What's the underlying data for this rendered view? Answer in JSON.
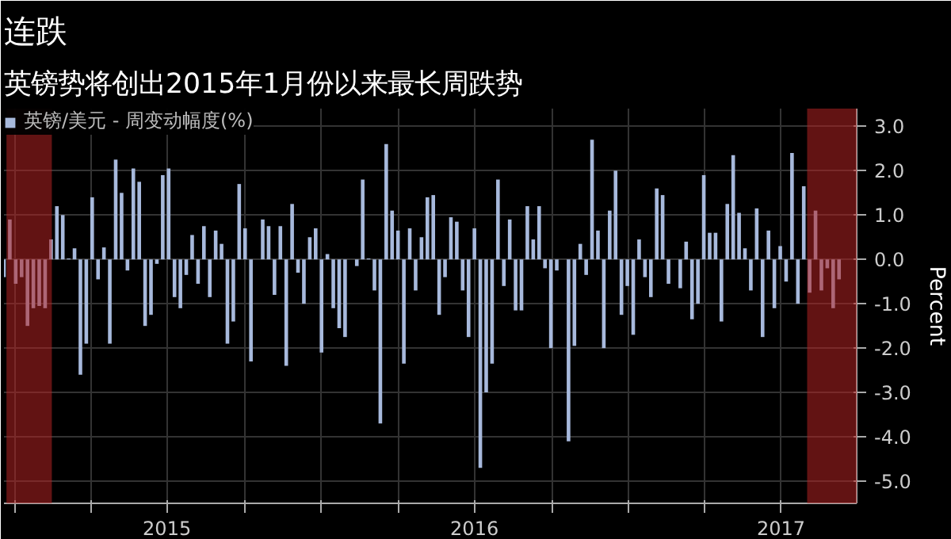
{
  "chart_data": {
    "type": "bar",
    "title": "连跌",
    "subtitle": "英镑势将创出2015年1月份以来最长周跌势",
    "ylabel": "Percent",
    "x": [
      "2014-12-19",
      "2014-12-26",
      "2015-01-02",
      "2015-01-09",
      "2015-01-16",
      "2015-01-23",
      "2015-01-30",
      "2015-02-06",
      "2015-02-13",
      "2015-02-20",
      "2015-02-27",
      "2015-03-06",
      "2015-03-13",
      "2015-03-20",
      "2015-03-27",
      "2015-04-03",
      "2015-04-10",
      "2015-04-17",
      "2015-04-24",
      "2015-05-01",
      "2015-05-08",
      "2015-05-15",
      "2015-05-22",
      "2015-05-29",
      "2015-06-05",
      "2015-06-12",
      "2015-06-19",
      "2015-06-26",
      "2015-07-03",
      "2015-07-10",
      "2015-07-17",
      "2015-07-24",
      "2015-07-31",
      "2015-08-07",
      "2015-08-14",
      "2015-08-21",
      "2015-08-28",
      "2015-09-04",
      "2015-09-11",
      "2015-09-18",
      "2015-09-25",
      "2015-10-02",
      "2015-10-09",
      "2015-10-16",
      "2015-10-23",
      "2015-10-30",
      "2015-11-06",
      "2015-11-13",
      "2015-11-20",
      "2015-11-27",
      "2015-12-04",
      "2015-12-11",
      "2015-12-18",
      "2015-12-25",
      "2016-01-01",
      "2016-01-08",
      "2016-01-15",
      "2016-01-22",
      "2016-01-29",
      "2016-02-05",
      "2016-02-12",
      "2016-02-19",
      "2016-02-26",
      "2016-03-04",
      "2016-03-11",
      "2016-03-18",
      "2016-03-25",
      "2016-04-01",
      "2016-04-08",
      "2016-04-15",
      "2016-04-22",
      "2016-04-29",
      "2016-05-06",
      "2016-05-13",
      "2016-05-20",
      "2016-05-27",
      "2016-06-03",
      "2016-06-10",
      "2016-06-17",
      "2016-06-24",
      "2016-07-01",
      "2016-07-08",
      "2016-07-15",
      "2016-07-22",
      "2016-07-29",
      "2016-08-05",
      "2016-08-12",
      "2016-08-19",
      "2016-08-26",
      "2016-09-02",
      "2016-09-09",
      "2016-09-16",
      "2016-09-23",
      "2016-09-30",
      "2016-10-07",
      "2016-10-14",
      "2016-10-21",
      "2016-10-28",
      "2016-11-04",
      "2016-11-11",
      "2016-11-18",
      "2016-11-25",
      "2016-12-02",
      "2016-12-09",
      "2016-12-16",
      "2016-12-23",
      "2016-12-30",
      "2017-01-06",
      "2017-01-13",
      "2017-01-20",
      "2017-01-27",
      "2017-02-03",
      "2017-02-10",
      "2017-02-17",
      "2017-02-24",
      "2017-03-03",
      "2017-03-10",
      "2017-03-17",
      "2017-03-24",
      "2017-03-31",
      "2017-04-07",
      "2017-04-14",
      "2017-04-21",
      "2017-04-28",
      "2017-05-05",
      "2017-05-12",
      "2017-05-19",
      "2017-05-26",
      "2017-06-02",
      "2017-06-09",
      "2017-06-16",
      "2017-06-23",
      "2017-06-30",
      "2017-07-07",
      "2017-07-14",
      "2017-07-21",
      "2017-07-28",
      "2017-08-04",
      "2017-08-11",
      "2017-08-18",
      "2017-08-25",
      "2017-09-01",
      "2017-09-08"
    ],
    "series": [
      {
        "name": "英镑/美元 - 周变动幅度(%)",
        "color": "#a7b9dc",
        "values": [
          -0.4,
          0.9,
          -0.55,
          -0.4,
          -1.5,
          -1.1,
          -1.05,
          -1.1,
          0.45,
          1.2,
          1.0,
          0.02,
          0.25,
          -2.6,
          -1.9,
          1.4,
          -0.45,
          0.27,
          -1.9,
          2.25,
          1.5,
          -0.25,
          2.05,
          1.75,
          -1.5,
          -1.25,
          -0.1,
          1.9,
          2.05,
          -0.85,
          -1.1,
          -0.35,
          0.55,
          -0.55,
          0.75,
          -0.85,
          0.65,
          0.35,
          -1.9,
          -1.4,
          1.7,
          0.7,
          -2.3,
          null,
          0.9,
          0.75,
          -0.8,
          0.75,
          -2.4,
          1.25,
          -0.3,
          -1.0,
          0.5,
          0.7,
          -2.1,
          0.12,
          -1.1,
          -1.55,
          -1.75,
          null,
          -0.15,
          1.8,
          0.02,
          -0.7,
          -3.7,
          2.6,
          1.1,
          0.65,
          -2.35,
          0.7,
          -0.7,
          0.5,
          1.4,
          1.45,
          -1.25,
          -0.4,
          0.95,
          0.85,
          -0.7,
          -1.75,
          0.7,
          -4.7,
          -3.0,
          -2.35,
          1.8,
          -0.6,
          0.9,
          -1.15,
          -1.15,
          1.2,
          0.45,
          1.2,
          -0.2,
          -2.0,
          -0.25,
          null,
          -4.1,
          -1.95,
          0.35,
          -0.35,
          2.7,
          0.65,
          -2.0,
          1.1,
          2.0,
          -1.25,
          -0.6,
          -1.7,
          0.45,
          -0.4,
          -0.85,
          1.6,
          1.45,
          -0.55,
          null,
          -0.65,
          0.4,
          -1.35,
          -1.0,
          1.9,
          0.6,
          0.6,
          -1.4,
          1.25,
          2.35,
          1.05,
          0.25,
          -0.7,
          1.15,
          -1.75,
          0.65,
          -1.1,
          0.3,
          -0.5,
          2.4,
          -1.0,
          1.65,
          -0.75,
          1.1,
          -0.7,
          -0.2,
          -1.1,
          -0.45
        ]
      }
    ],
    "xlim": [
      "2014-12-19",
      "2017-09-29"
    ],
    "xticks": [
      {
        "value": "2015-01-01",
        "label": null
      },
      {
        "value": "2015-04-01",
        "label": null
      },
      {
        "value": "2015-07-01",
        "label": "2015"
      },
      {
        "value": "2015-10-01",
        "label": null
      },
      {
        "value": "2016-01-01",
        "label": null
      },
      {
        "value": "2016-04-01",
        "label": null
      },
      {
        "value": "2016-07-01",
        "label": "2016"
      },
      {
        "value": "2016-10-01",
        "label": null
      },
      {
        "value": "2017-01-01",
        "label": null
      },
      {
        "value": "2017-04-01",
        "label": null
      },
      {
        "value": "2017-07-01",
        "label": "2017"
      }
    ],
    "ylim": [
      -5.5,
      3.4
    ],
    "yticks": [
      {
        "value": -5,
        "label": "-5.0"
      },
      {
        "value": -4,
        "label": "-4.0"
      },
      {
        "value": -3,
        "label": "-3.0"
      },
      {
        "value": -2,
        "label": "-2.0"
      },
      {
        "value": -1,
        "label": "-1.0"
      },
      {
        "value": 0,
        "label": "0.0"
      },
      {
        "value": 1,
        "label": "1.0"
      },
      {
        "value": 2,
        "label": "2.0"
      },
      {
        "value": 3,
        "label": "3.0"
      }
    ],
    "bands": [
      {
        "axis": "x",
        "from": "2014-12-22",
        "to": "2015-02-14",
        "color": "#b22222"
      },
      {
        "axis": "x",
        "from": "2017-08-01",
        "to": "2017-09-29",
        "color": "#b22222"
      }
    ],
    "grid": true,
    "legend": "top left"
  }
}
